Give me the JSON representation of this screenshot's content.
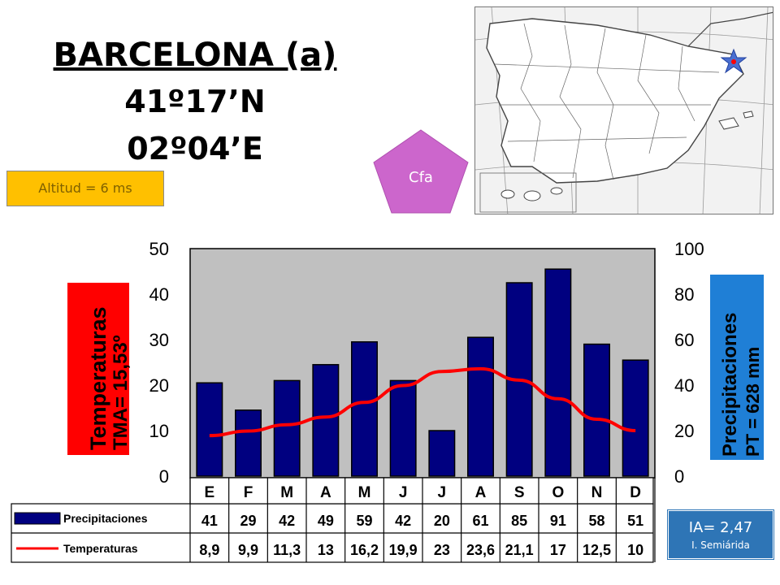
{
  "station": {
    "name": "BARCELONA (a)",
    "latitude": "41º17’N",
    "longitude": "02º04’E",
    "altitude": "Altitud = 6 ms",
    "climate_type": "Cfa",
    "aridity_index": "IA= 2,47",
    "aridity_class": "I. Semiárida"
  },
  "colors": {
    "precip_bar": "#000080",
    "temp_line": "#ff0000",
    "plot_bg": "#c0c0c0",
    "temp_label_bg": "#ff0000",
    "precip_label_bg": "#1f7fd6",
    "badge": "#cc66cc",
    "altitude_bg": "#ffc000",
    "ia_bg": "#2e75b6"
  },
  "chart_data": {
    "type": "bar",
    "categories": [
      "E",
      "F",
      "M",
      "A",
      "M",
      "J",
      "J",
      "A",
      "S",
      "O",
      "N",
      "D"
    ],
    "series": [
      {
        "name": "Precipitaciones",
        "kind": "bar",
        "axis": "right",
        "values": [
          41,
          29,
          42,
          49,
          59,
          42,
          20,
          61,
          85,
          91,
          58,
          51
        ],
        "labels": [
          "41",
          "29",
          "42",
          "49",
          "59",
          "42",
          "20",
          "61",
          "85",
          "91",
          "58",
          "51"
        ]
      },
      {
        "name": "Temperaturas",
        "kind": "line",
        "axis": "left",
        "values": [
          8.9,
          9.9,
          11.3,
          13,
          16.2,
          19.9,
          23,
          23.6,
          21.1,
          17,
          12.5,
          10
        ],
        "labels": [
          "8,9",
          "9,9",
          "11,3",
          "13",
          "16,2",
          "19,9",
          "23",
          "23,6",
          "21,1",
          "17",
          "12,5",
          "10"
        ]
      }
    ],
    "left_axis": {
      "label_line1": "Temperaturas",
      "label_line2": "TMA=  15,53º",
      "ylim": [
        0,
        50
      ],
      "ticks": [
        "0",
        "10",
        "20",
        "30",
        "40",
        "50"
      ]
    },
    "right_axis": {
      "label_line1": "Precipitaciones",
      "label_line2": "PT = 628 mm",
      "ylim": [
        0,
        100
      ],
      "ticks": [
        "0",
        "20",
        "40",
        "60",
        "80",
        "100"
      ]
    },
    "grid": false
  }
}
